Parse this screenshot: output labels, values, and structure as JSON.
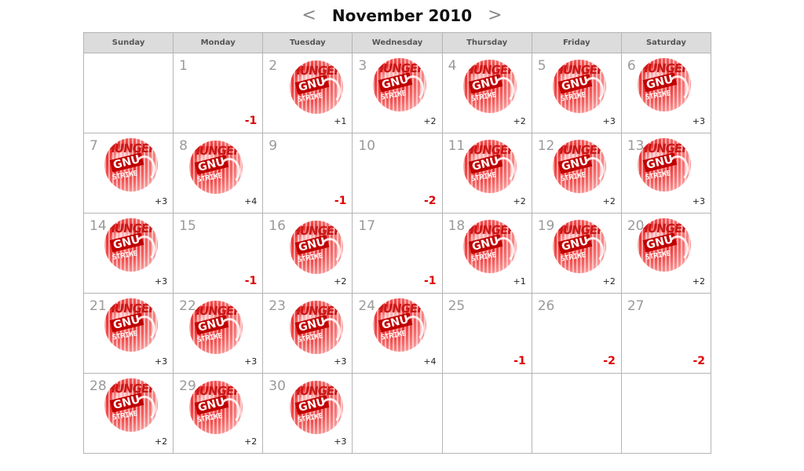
{
  "header": {
    "title": "November 2010",
    "prev": "<",
    "next": ">"
  },
  "colors": {
    "negative": "#dd0000",
    "badge_accent": "#ee3030",
    "header_bg": "#dcdcdc"
  },
  "badge_text": {
    "top": "HUNGER",
    "mid": "GNU",
    "bottom": "STRIKE"
  },
  "weekdays": [
    "Sunday",
    "Monday",
    "Tuesday",
    "Wednesday",
    "Thursday",
    "Friday",
    "Saturday"
  ],
  "weeks": [
    [
      null,
      {
        "day": "1",
        "score": "-1",
        "badge": false
      },
      {
        "day": "2",
        "score": "+1",
        "badge": true
      },
      {
        "day": "3",
        "score": "+2",
        "badge": true
      },
      {
        "day": "4",
        "score": "+2",
        "badge": true
      },
      {
        "day": "5",
        "score": "+3",
        "badge": true
      },
      {
        "day": "6",
        "score": "+3",
        "badge": true
      }
    ],
    [
      {
        "day": "7",
        "score": "+3",
        "badge": true
      },
      {
        "day": "8",
        "score": "+4",
        "badge": true
      },
      {
        "day": "9",
        "score": "-1",
        "badge": false
      },
      {
        "day": "10",
        "score": "-2",
        "badge": false
      },
      {
        "day": "11",
        "score": "+2",
        "badge": true
      },
      {
        "day": "12",
        "score": "+2",
        "badge": true
      },
      {
        "day": "13",
        "score": "+3",
        "badge": true
      }
    ],
    [
      {
        "day": "14",
        "score": "+3",
        "badge": true
      },
      {
        "day": "15",
        "score": "-1",
        "badge": false
      },
      {
        "day": "16",
        "score": "+2",
        "badge": true
      },
      {
        "day": "17",
        "score": "-1",
        "badge": false
      },
      {
        "day": "18",
        "score": "+1",
        "badge": true
      },
      {
        "day": "19",
        "score": "+2",
        "badge": true
      },
      {
        "day": "20",
        "score": "+2",
        "badge": true
      }
    ],
    [
      {
        "day": "21",
        "score": "+3",
        "badge": true
      },
      {
        "day": "22",
        "score": "+3",
        "badge": true
      },
      {
        "day": "23",
        "score": "+3",
        "badge": true
      },
      {
        "day": "24",
        "score": "+4",
        "badge": true
      },
      {
        "day": "25",
        "score": "-1",
        "badge": false
      },
      {
        "day": "26",
        "score": "-2",
        "badge": false
      },
      {
        "day": "27",
        "score": "-2",
        "badge": false
      }
    ],
    [
      {
        "day": "28",
        "score": "+2",
        "badge": true
      },
      {
        "day": "29",
        "score": "+2",
        "badge": true
      },
      {
        "day": "30",
        "score": "+3",
        "badge": true
      },
      null,
      null,
      null,
      null
    ]
  ]
}
